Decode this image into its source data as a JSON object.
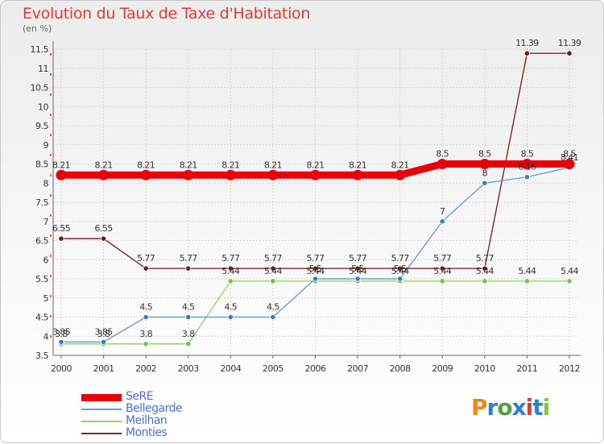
{
  "title": "Evolution du Taux de Taxe d'Habitation",
  "unit_label": "(en %)",
  "brand": "Proxiti",
  "brand_letter_colors": [
    "#e88a1a",
    "#2f7fd0",
    "#4aa534",
    "#2f7fd0",
    "#e03a2f",
    "#2f7fd0",
    "#8bc34a"
  ],
  "colors": {
    "title": "#e03a2f",
    "grid": "#d6d6d6",
    "axis": "#666666"
  },
  "chart_data": {
    "type": "line",
    "title": "Evolution du Taux de Taxe d'Habitation",
    "ylabel": "(en %)",
    "xlabel": "",
    "categories": [
      "2000",
      "2001",
      "2002",
      "2003",
      "2004",
      "2005",
      "2006",
      "2007",
      "2008",
      "2009",
      "2010",
      "2011",
      "2012"
    ],
    "ylim": [
      3.5,
      11.5
    ],
    "yticks": [
      3.5,
      4,
      4.5,
      5,
      5.5,
      6,
      6.5,
      7,
      7.5,
      8,
      8.5,
      9,
      9.5,
      10,
      10.5,
      11,
      11.5
    ],
    "ytick_labels": [
      "3.5",
      "4",
      "4.5",
      "5",
      "5.5",
      "6",
      "6.5",
      "7",
      "7.5",
      "8",
      "8.5",
      "9",
      "9.5",
      "10",
      "10.5",
      "11",
      "11.5"
    ],
    "legend_position": "bottom-left",
    "series": [
      {
        "name": "SeRE",
        "color": "#e8000b",
        "marker": "#e8000b",
        "width": "thick",
        "values": [
          8.21,
          8.21,
          8.21,
          8.21,
          8.21,
          8.21,
          8.21,
          8.21,
          8.21,
          8.5,
          8.5,
          8.5,
          8.5
        ],
        "labels": [
          "8.21",
          "8.21",
          "8.21",
          "8.21",
          "8.21",
          "8.21",
          "8.21",
          "8.21",
          "8.21",
          "8.5",
          "8.5",
          "8.5",
          "8.5"
        ]
      },
      {
        "name": "Bellegarde",
        "color": "#6a9fd0",
        "marker": "#3a7cc0",
        "width": "thin",
        "values": [
          3.85,
          3.85,
          4.5,
          4.5,
          4.5,
          4.5,
          5.5,
          5.5,
          5.5,
          7,
          8,
          8.16,
          8.41
        ],
        "labels": [
          "3.85",
          "3.85",
          "4.5",
          "4.5",
          "4.5",
          "4.5",
          "5.5",
          "5.5",
          "5.5",
          "7",
          "8",
          "8.16",
          "8.41"
        ]
      },
      {
        "name": "Meilhan",
        "color": "#8fd66a",
        "marker": "#79c04c",
        "width": "thin",
        "values": [
          3.8,
          3.8,
          3.8,
          3.8,
          5.44,
          5.44,
          5.44,
          5.44,
          5.44,
          5.44,
          5.44,
          5.44,
          5.44
        ],
        "labels": [
          "3.8",
          "3.8",
          "3.8",
          "3.8",
          "5.44",
          "5.44",
          "5.44",
          "5.44",
          "5.44",
          "5.44",
          "5.44",
          "5.44",
          "5.44"
        ]
      },
      {
        "name": "Monties",
        "color": "#7a2a2a",
        "marker": "#6b1f1f",
        "width": "thin",
        "values": [
          6.55,
          6.55,
          5.77,
          5.77,
          5.77,
          5.77,
          5.77,
          5.77,
          5.77,
          5.77,
          5.77,
          11.39,
          11.39
        ],
        "labels": [
          "6.55",
          "6.55",
          "5.77",
          "5.77",
          "5.77",
          "5.77",
          "5.77",
          "5.77",
          "5.77",
          "5.77",
          "5.77",
          "11.39",
          "11.39"
        ]
      }
    ]
  }
}
